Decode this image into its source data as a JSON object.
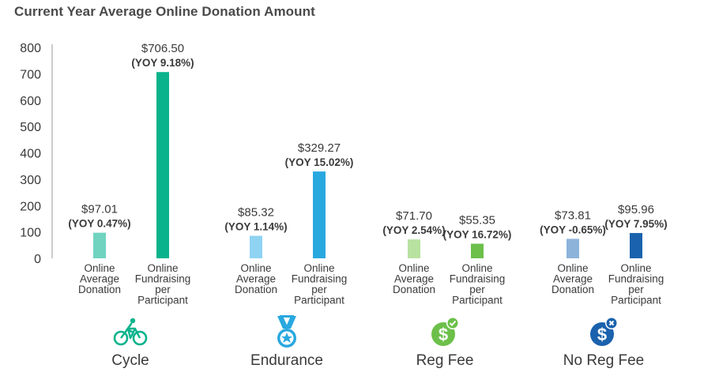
{
  "chart_data": {
    "type": "bar",
    "title": "Current Year Average Online Donation Amount",
    "ylim": [
      0,
      800
    ],
    "yticks": [
      "0",
      "100",
      "200",
      "300",
      "400",
      "500",
      "600",
      "700",
      "800"
    ],
    "grid": false,
    "groups": [
      {
        "name": "Cycle",
        "icon": "bicycle-icon",
        "bars": [
          {
            "category": [
              "Online",
              "Average",
              "Donation"
            ],
            "value": 97.01,
            "value_label": "$97.01",
            "yoy_label": "(YOY 0.47%)",
            "yoy_color": "#3a3a3a",
            "color": "#6fd3c0"
          },
          {
            "category": [
              "Online",
              "Fundraising",
              "per",
              "Participant"
            ],
            "value": 706.5,
            "value_label": "$706.50",
            "yoy_label": "(YOY 9.18%)",
            "yoy_color": "#3a3a3a",
            "color": "#0ab38c"
          }
        ]
      },
      {
        "name": "Endurance",
        "icon": "medal-icon",
        "bars": [
          {
            "category": [
              "Online",
              "Average",
              "Donation"
            ],
            "value": 85.32,
            "value_label": "$85.32",
            "yoy_label": "(YOY 1.14%)",
            "yoy_color": "#3a3a3a",
            "color": "#8fd3f2"
          },
          {
            "category": [
              "Online",
              "Fundraising",
              "per",
              "Participant"
            ],
            "value": 329.27,
            "value_label": "$329.27",
            "yoy_label": "(YOY 15.02%)",
            "yoy_color": "#3a3a3a",
            "color": "#29a8e0"
          }
        ]
      },
      {
        "name": "Reg Fee",
        "icon": "dollar-check-icon",
        "bars": [
          {
            "category": [
              "Online",
              "Average",
              "Donation"
            ],
            "value": 71.7,
            "value_label": "$71.70",
            "yoy_label": "(YOY 2.54%)",
            "yoy_color": "#3a3a3a",
            "color": "#b8e2a0"
          },
          {
            "category": [
              "Online",
              "Fundraising",
              "per",
              "Participant"
            ],
            "value": 55.35,
            "value_label": "$55.35",
            "yoy_label": "(YOY 16.72%)",
            "yoy_color": "#3a3a3a",
            "color": "#6cc04a"
          }
        ]
      },
      {
        "name": "No Reg Fee",
        "icon": "dollar-x-icon",
        "bars": [
          {
            "category": [
              "Online",
              "Average",
              "Donation"
            ],
            "value": 73.81,
            "value_label": "$73.81",
            "yoy_label": "(YOY -0.65%)",
            "yoy_color": "#e0262f",
            "color": "#8cb3da"
          },
          {
            "category": [
              "Online",
              "Fundraising",
              "per",
              "Participant"
            ],
            "value": 95.96,
            "value_label": "$95.96",
            "yoy_label": "(YOY 7.95%)",
            "yoy_color": "#3a3a3a",
            "color": "#1a62ad"
          }
        ]
      }
    ]
  },
  "icon_colors": {
    "bicycle-icon": "#0ab38c",
    "medal-icon": "#29a8e0",
    "dollar-check-icon": "#6cc04a",
    "dollar-x-icon": "#1a62ad"
  }
}
